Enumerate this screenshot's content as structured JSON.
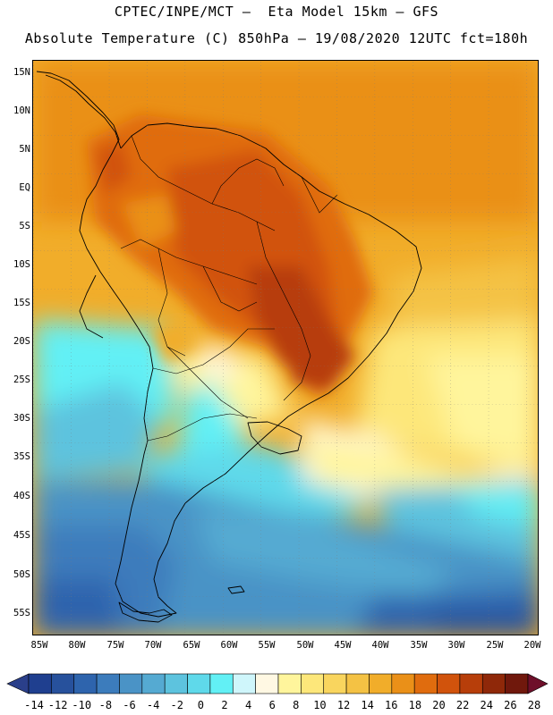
{
  "header": {
    "line1": "CPTEC/INPE/MCT —  Eta Model 15km — GFS",
    "line2": "Absolute Temperature (C) 850hPa — 19/08/2020 12UTC fct=180h"
  },
  "map": {
    "lat_labels": [
      "15N",
      "10N",
      "5N",
      "EQ",
      "5S",
      "10S",
      "15S",
      "20S",
      "25S",
      "30S",
      "35S",
      "40S",
      "45S",
      "50S",
      "55S"
    ],
    "lon_labels": [
      "85W",
      "80W",
      "75W",
      "70W",
      "65W",
      "60W",
      "55W",
      "50W",
      "45W",
      "40W",
      "35W",
      "30W",
      "25W",
      "20W"
    ]
  },
  "colorbar": {
    "labels": [
      "-14",
      "-12",
      "-10",
      "-8",
      "-6",
      "-4",
      "-2",
      "0",
      "2",
      "4",
      "6",
      "8",
      "10",
      "12",
      "14",
      "16",
      "18",
      "20",
      "22",
      "24",
      "26",
      "28"
    ],
    "colors": [
      "#1f3f8f",
      "#27519c",
      "#2e64ad",
      "#3c7cbc",
      "#4a93c6",
      "#55aad2",
      "#5dc3de",
      "#5fd9ea",
      "#62f0f5",
      "#cff6fb",
      "#fff8e3",
      "#fff59c",
      "#fde77a",
      "#f9d55e",
      "#f4c244",
      "#f1ad2a",
      "#ea9018",
      "#e06c0e",
      "#d1530c",
      "#b73e0a",
      "#8f2809",
      "#70180c"
    ],
    "under_color": "#2a3f8a",
    "over_color": "#6e0f2a"
  }
}
